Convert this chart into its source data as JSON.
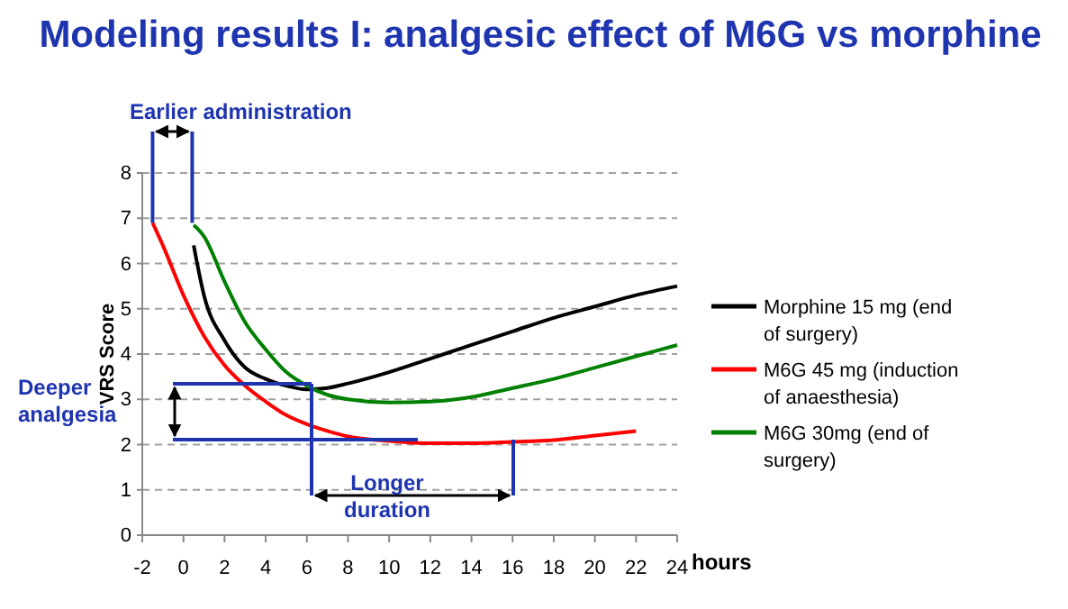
{
  "chart_data": {
    "type": "line",
    "title": "Modeling results I: analgesic effect of M6G vs morphine",
    "xlabel": "hours",
    "ylabel": "VRS Score",
    "xlim": [
      -2,
      24
    ],
    "xticks": [
      -2,
      0,
      2,
      4,
      6,
      8,
      10,
      12,
      14,
      16,
      18,
      20,
      22,
      24
    ],
    "ylim": [
      0,
      8
    ],
    "yticks": [
      0,
      1,
      2,
      3,
      4,
      5,
      6,
      7,
      8
    ],
    "grid": "y",
    "legend": "right",
    "line_style": "solid",
    "marker": "none",
    "annotations": [
      {
        "text": "Earlier administration",
        "x": -1.5,
        "y": 6.9
      },
      "Deeper analgesia",
      "Longer duration"
    ],
    "series": [
      {
        "name": "Morphine 15 mg (end of surgery)",
        "color": "#000000",
        "x": [
          0.5,
          1,
          2,
          3,
          4,
          5,
          6,
          7,
          8,
          10,
          12,
          14,
          16,
          18,
          20,
          22,
          24
        ],
        "values": [
          6.4,
          5.3,
          4.3,
          3.7,
          3.45,
          3.3,
          3.22,
          3.25,
          3.35,
          3.6,
          3.9,
          4.2,
          4.5,
          4.8,
          5.05,
          5.3,
          5.5
        ]
      },
      {
        "name": "M6G 45 mg (induction of anaesthesia)",
        "color": "#ff0000",
        "x": [
          -1.5,
          -1,
          0,
          1,
          2,
          3,
          4,
          5,
          6,
          7,
          8,
          10,
          12,
          14,
          16,
          18,
          20,
          22
        ],
        "values": [
          6.9,
          6.4,
          5.3,
          4.4,
          3.75,
          3.3,
          2.95,
          2.65,
          2.45,
          2.3,
          2.18,
          2.08,
          2.03,
          2.03,
          2.06,
          2.1,
          2.2,
          2.3
        ]
      },
      {
        "name": "M6G 30mg (end of surgery)",
        "color": "#008000",
        "x": [
          0.5,
          1,
          2,
          3,
          4,
          5,
          6,
          7,
          8,
          10,
          12,
          14,
          16,
          18,
          20,
          22,
          24
        ],
        "values": [
          6.85,
          6.6,
          5.6,
          4.7,
          4.1,
          3.6,
          3.3,
          3.1,
          3.0,
          2.93,
          2.95,
          3.05,
          3.25,
          3.45,
          3.7,
          3.95,
          4.2
        ]
      }
    ]
  }
}
